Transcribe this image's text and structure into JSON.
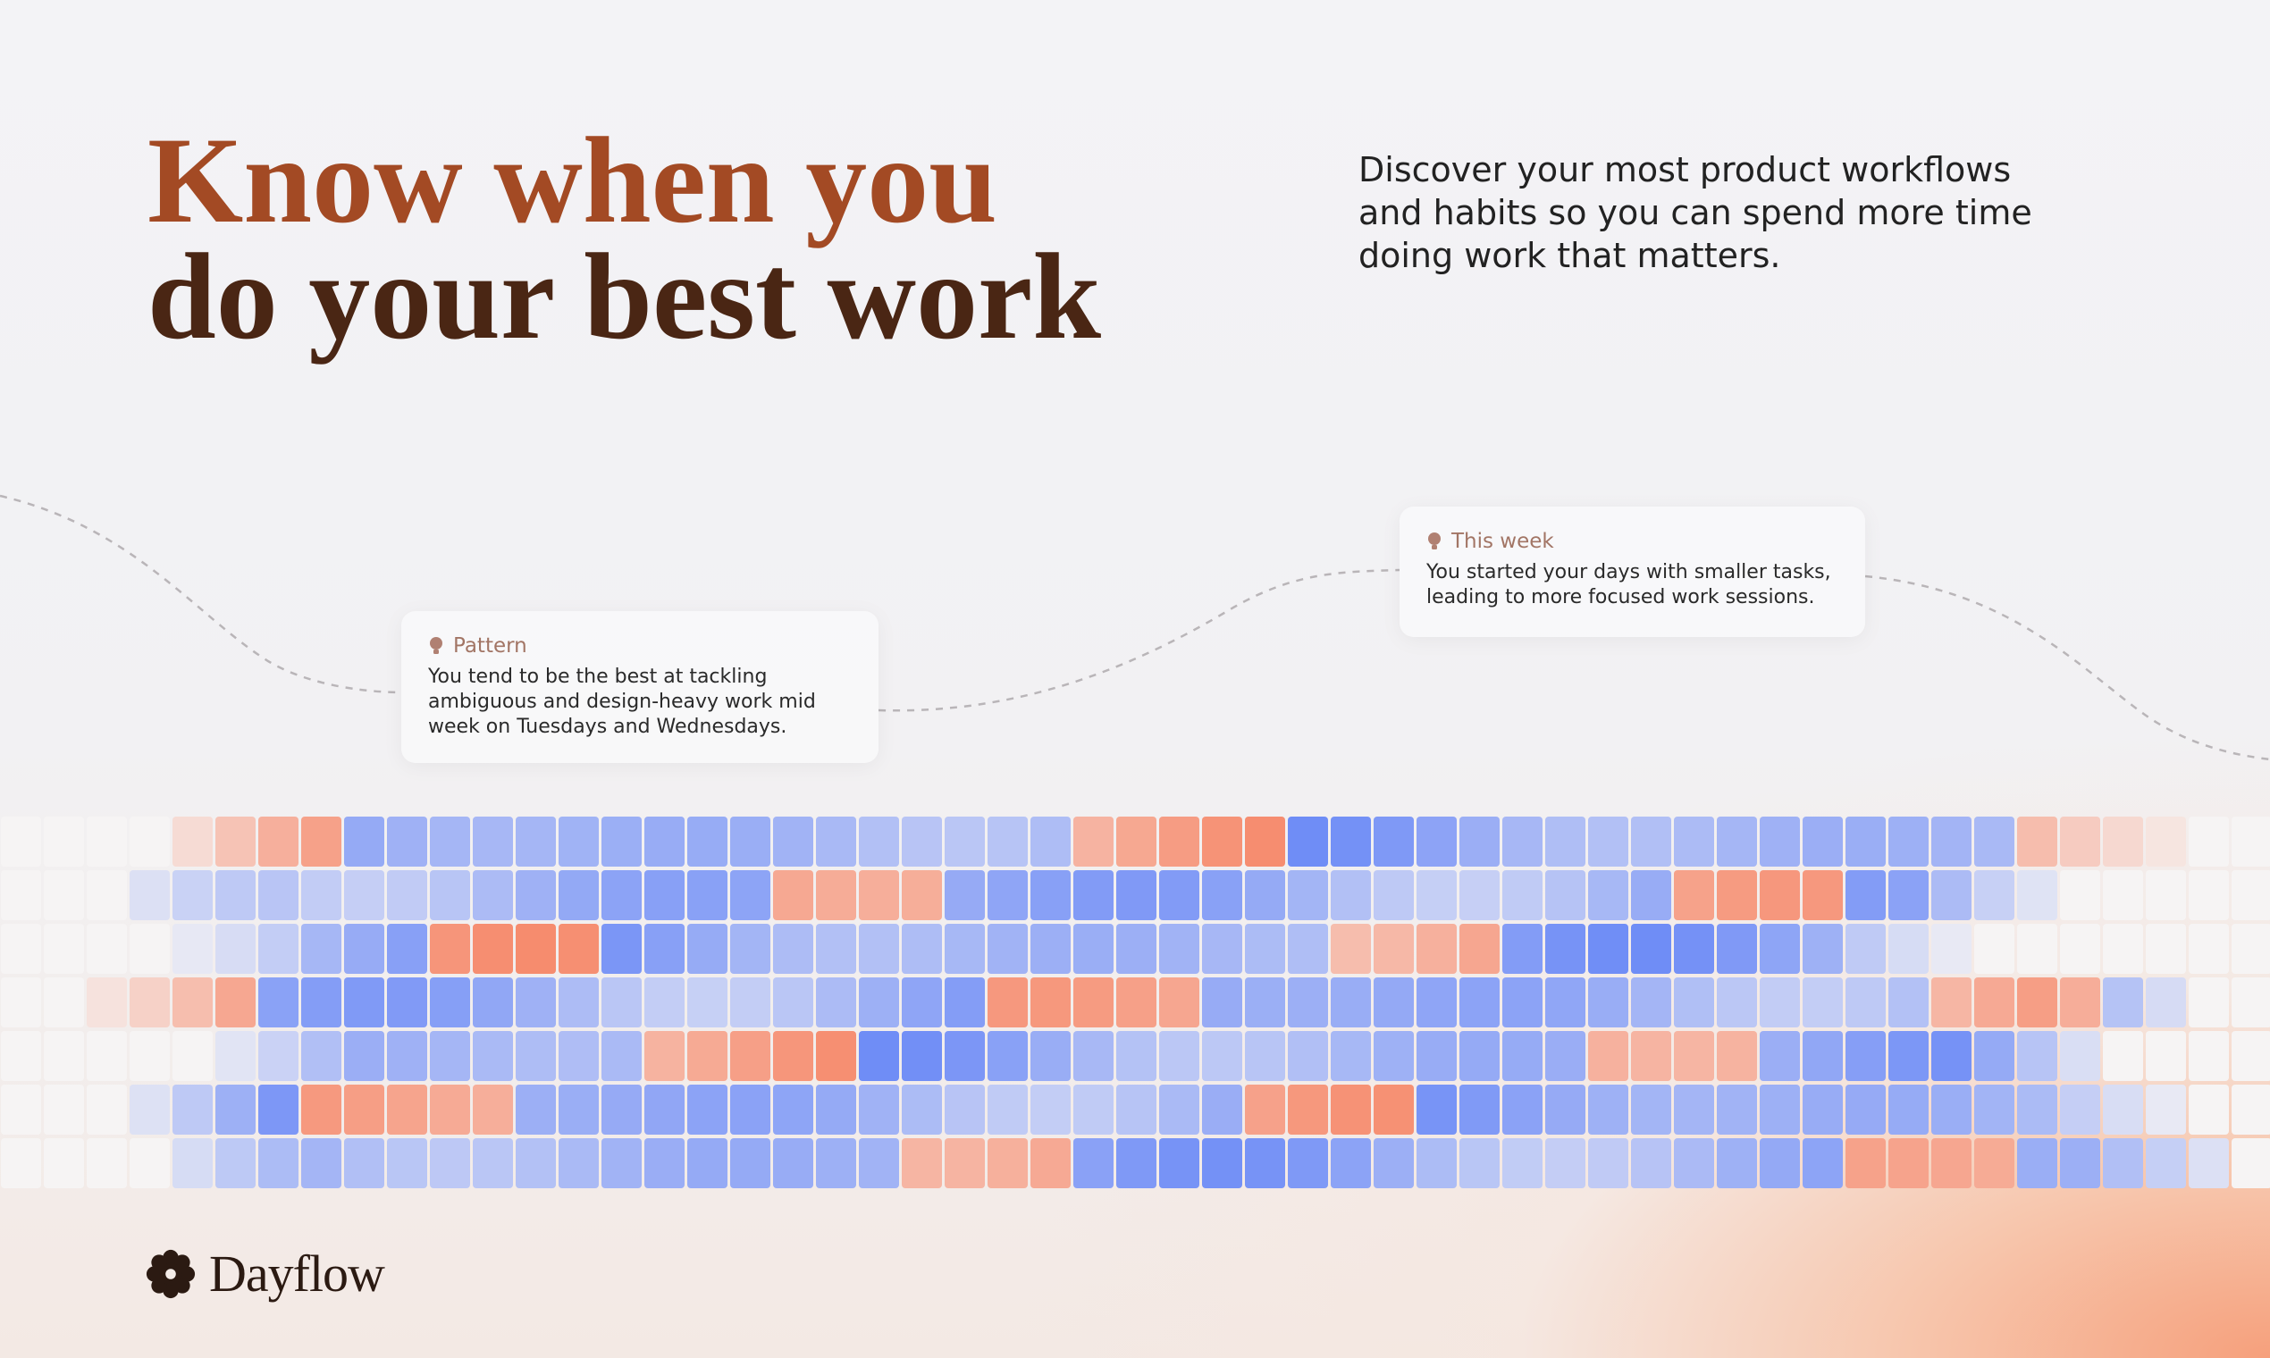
{
  "headline": {
    "line1": "Know when you",
    "line2": "do your best work"
  },
  "description": "Discover your most product workflows and habits so you can spend more time doing work that matters.",
  "cards": [
    {
      "label": "Pattern",
      "text": "You tend to be the best at tackling ambiguous and design-heavy work mid week on Tuesdays and Wednesdays."
    },
    {
      "label": "This week",
      "text": "You started your days with smaller tasks, leading to more focused work sessions."
    }
  ],
  "brand": "Dayflow"
}
